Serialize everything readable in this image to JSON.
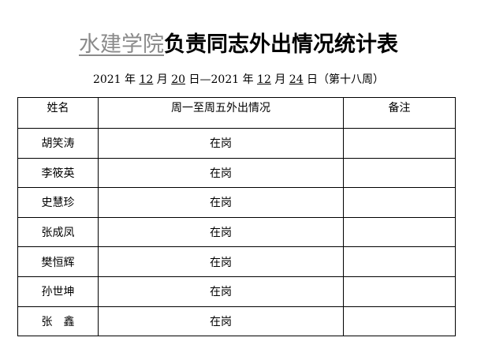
{
  "title": {
    "org": "水建学院",
    "rest": "负责同志外出情况统计表"
  },
  "date": {
    "y1": "2021",
    "t1": " 年 ",
    "m1": "12",
    "t2": " 月 ",
    "d1": "20",
    "t3": " 日—",
    "y2": "2021",
    "t4": " 年 ",
    "m2": "12",
    "t5": " 月 ",
    "d2": "24",
    "t6": " 日（第十八周）"
  },
  "table": {
    "headers": [
      "姓名",
      "周一至周五外出情况",
      "备注"
    ],
    "rows": [
      {
        "name": "胡笑涛",
        "status": "在岗",
        "note": ""
      },
      {
        "name": "李筱英",
        "status": "在岗",
        "note": ""
      },
      {
        "name": "史慧珍",
        "status": "在岗",
        "note": ""
      },
      {
        "name": "张成凤",
        "status": "在岗",
        "note": ""
      },
      {
        "name": "樊恒辉",
        "status": "在岗",
        "note": ""
      },
      {
        "name": "孙世坤",
        "status": "在岗",
        "note": ""
      },
      {
        "name": "张　鑫",
        "status": "在岗",
        "note": ""
      }
    ]
  }
}
